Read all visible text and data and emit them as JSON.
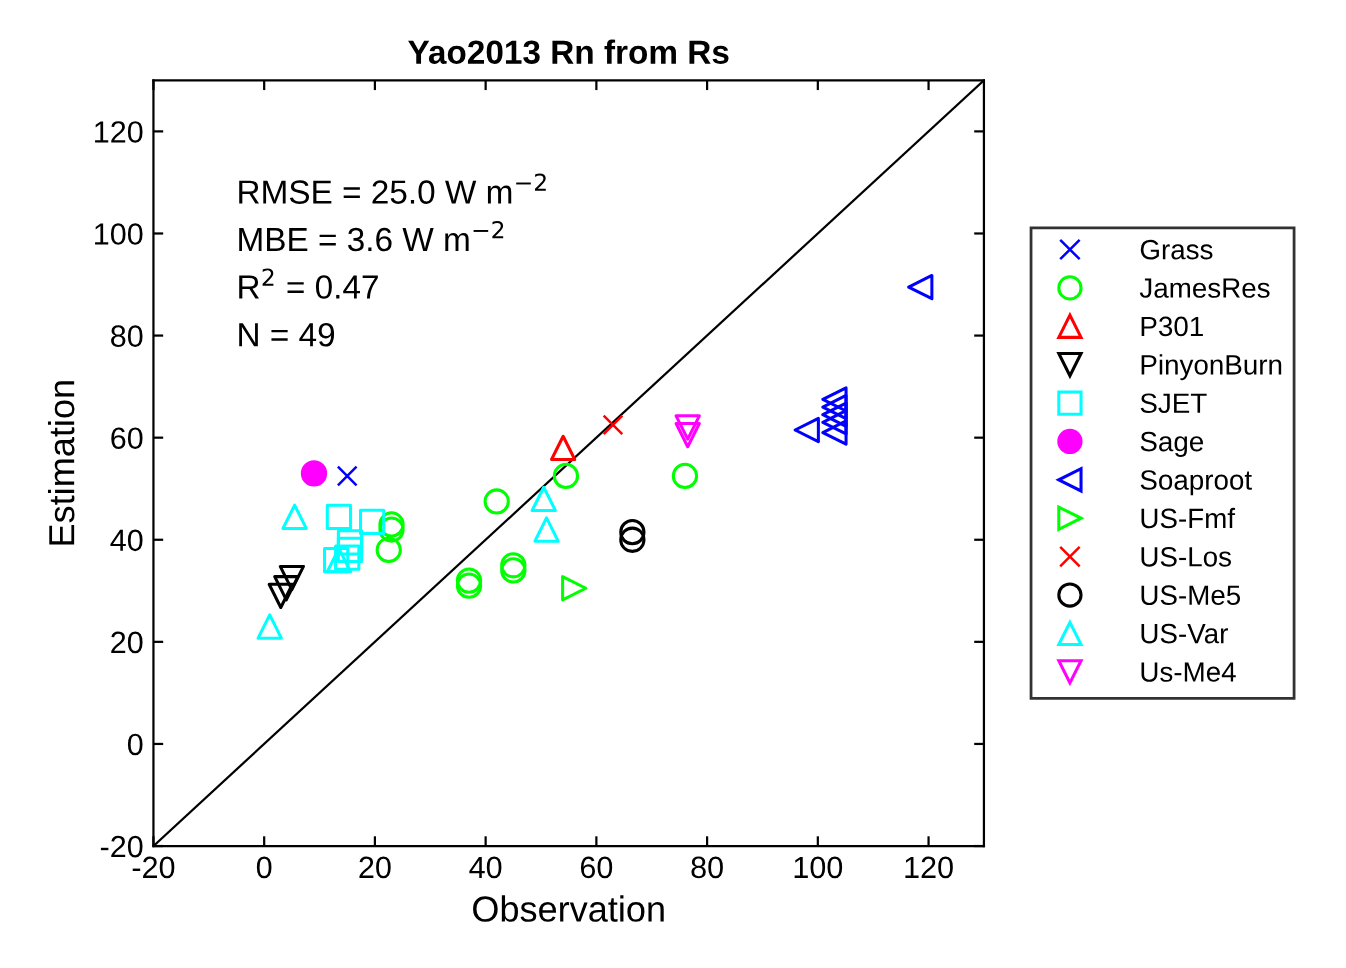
{
  "chart_data": {
    "type": "scatter",
    "title": "Yao2013 Rn from Rs",
    "xlabel": "Observation",
    "ylabel": "Estimation",
    "annotations": [
      "RMSE = 25.0 W m$^{−2}$",
      "MBE = 3.6 W m$^{−2}$",
      "R$^{2}$ = 0.47",
      "N = 49"
    ],
    "xlim": [
      -20,
      130
    ],
    "ylim": [
      -20,
      130
    ],
    "xticks": [
      -20,
      0,
      20,
      40,
      60,
      80,
      100,
      120
    ],
    "yticks": [
      -20,
      0,
      20,
      40,
      60,
      80,
      100,
      120
    ],
    "grid": false,
    "legend": "right",
    "series": [
      {
        "name": "Grass",
        "color": "#0000ff",
        "marker": "cross",
        "x": [
          15
        ],
        "values": [
          52.5
        ]
      },
      {
        "name": "JamesRes",
        "color": "#00ff00",
        "marker": "circle",
        "x": [
          23,
          23,
          22.5,
          37,
          37,
          42,
          45,
          45,
          54.5,
          76
        ],
        "values": [
          43,
          42,
          38,
          31,
          32,
          47.5,
          34,
          35,
          52.5,
          52.5
        ]
      },
      {
        "name": "P301",
        "color": "#ff0000",
        "marker": "triangle",
        "x": [
          54
        ],
        "values": [
          58
        ]
      },
      {
        "name": "PinyonBurn",
        "color": "#000000",
        "marker": "triangle_down",
        "x": [
          5,
          3,
          4
        ],
        "values": [
          32.5,
          29,
          30.5
        ]
      },
      {
        "name": "SJET",
        "color": "#00ffff",
        "marker": "square",
        "x": [
          13.5,
          19.5,
          15.5,
          15.5,
          15,
          13
        ],
        "values": [
          44.5,
          43.5,
          39.5,
          38,
          36.5,
          36
        ]
      },
      {
        "name": "Sage",
        "color": "#ff00ff",
        "marker": "filled_circle",
        "x": [
          9
        ],
        "values": [
          53
        ]
      },
      {
        "name": "Soaproot",
        "color": "#0000ff",
        "marker": "triangle_left",
        "x": [
          118.5,
          98,
          103,
          103,
          103,
          103,
          103
        ],
        "values": [
          89.5,
          61.5,
          67.5,
          66,
          64.5,
          63,
          61
        ]
      },
      {
        "name": "US-Fmf",
        "color": "#00ff00",
        "marker": "triangle_right",
        "x": [
          56
        ],
        "values": [
          30.5
        ]
      },
      {
        "name": "US-Los",
        "color": "#ff0000",
        "marker": "cross",
        "x": [
          63
        ],
        "values": [
          62.5
        ]
      },
      {
        "name": "US-Me5",
        "color": "#000000",
        "marker": "circle",
        "x": [
          66.5,
          66.5
        ],
        "values": [
          41.5,
          40
        ]
      },
      {
        "name": "US-Var",
        "color": "#00ffff",
        "marker": "triangle",
        "x": [
          50.5,
          51,
          5.5,
          13.5,
          1
        ],
        "values": [
          48,
          42,
          44.5,
          36,
          23
        ]
      },
      {
        "name": "Us-Me4",
        "color": "#ff00ff",
        "marker": "triangle_down",
        "x": [
          76.5,
          76.5
        ],
        "values": [
          62,
          60.5
        ]
      },
      {
        "type": "line",
        "color": "#000000",
        "marker": "none",
        "x": [
          -20,
          130
        ],
        "values": [
          -20,
          130
        ]
      }
    ]
  }
}
